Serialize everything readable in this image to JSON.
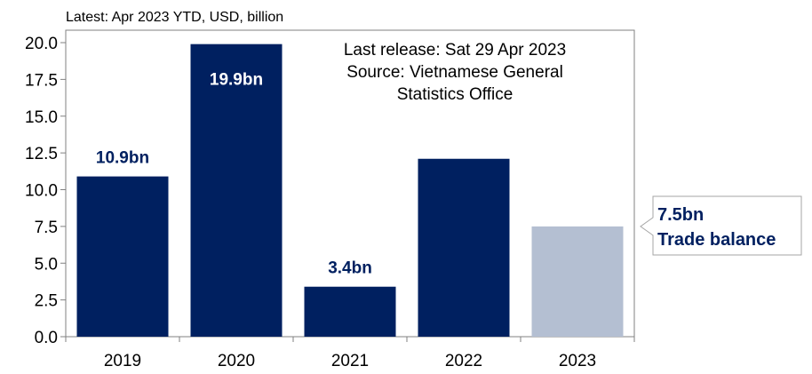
{
  "chart_data": {
    "type": "bar",
    "subtitle": "Latest: Apr 2023 YTD, USD, billion",
    "categories": [
      "2019",
      "2020",
      "2021",
      "2022",
      "2023"
    ],
    "values": [
      10.9,
      19.9,
      3.4,
      12.1,
      7.5
    ],
    "data_labels": [
      "10.9bn",
      "19.9bn",
      "3.4bn",
      "",
      ""
    ],
    "ylim": [
      0,
      20
    ],
    "yticks": [
      "0.0",
      "2.5",
      "5.0",
      "7.5",
      "10.0",
      "12.5",
      "15.0",
      "17.5",
      "20.0"
    ],
    "xlabel": "",
    "ylabel": "",
    "grid": false,
    "note_lines": [
      "Last release: Sat 29 Apr 2023",
      "Source: Vietnamese General",
      "Statistics Office"
    ],
    "callout": {
      "value_label": "7.5bn",
      "label": "Trade balance"
    },
    "colors": {
      "bar": "#002060",
      "highlight_bar": "#b4bfd2",
      "data_label": "#002060",
      "axis": "#808080",
      "callout_border": "#a6a6a6"
    }
  }
}
